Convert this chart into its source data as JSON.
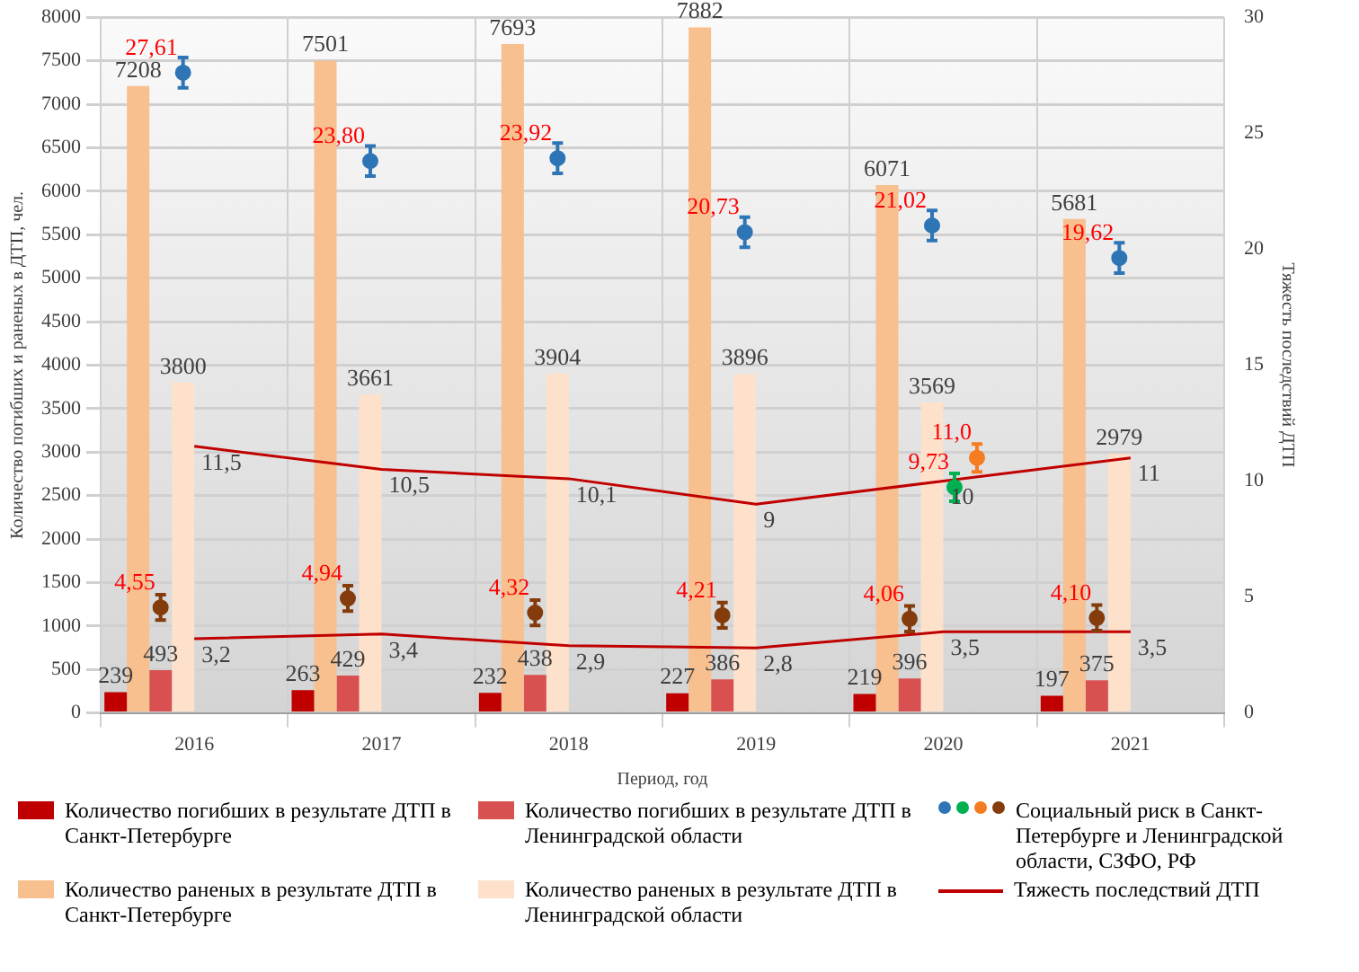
{
  "chart_data": {
    "type": "bar",
    "xlabel": "Период, год",
    "ylabel": "Количество погибших и раненых в ДТП, чел.",
    "y2label": "Тяжесть последствий ДТП",
    "categories": [
      "2016",
      "2017",
      "2018",
      "2019",
      "2020",
      "2021"
    ],
    "ylim": [
      0,
      8000
    ],
    "yticks": [
      0,
      500,
      1000,
      1500,
      2000,
      2500,
      3000,
      3500,
      4000,
      4500,
      5000,
      5500,
      6000,
      6500,
      7000,
      7500,
      8000
    ],
    "y2lim": [
      0,
      30
    ],
    "y2ticks": [
      0,
      5,
      10,
      15,
      20,
      25,
      30
    ],
    "grid": true,
    "legend": "bottom",
    "series": [
      {
        "name": "Количество погибших в результате ДТП в Санкт-Петербурге",
        "color": "#c00000",
        "values": [
          239,
          263,
          232,
          227,
          219,
          197
        ],
        "value_labels": [
          "239",
          "263",
          "232",
          "227",
          "219",
          "197"
        ]
      },
      {
        "name": "Количество раненых в результате ДТП в Санкт-Петербурге",
        "color": "#f8bf8f",
        "values": [
          7208,
          7501,
          7693,
          7882,
          6071,
          5681
        ],
        "value_labels": [
          "7208",
          "7501",
          "7693",
          "7882",
          "6071",
          "5681"
        ]
      },
      {
        "name": "Количество погибших в результате ДТП в Ленинградской области",
        "color": "#d85050",
        "values": [
          493,
          429,
          438,
          386,
          396,
          375
        ],
        "value_labels": [
          "493",
          "429",
          "438",
          "386",
          "396",
          "375"
        ]
      },
      {
        "name": "Количество раненых в результате ДТП в Ленинградской области",
        "color": "#fde1cb",
        "values": [
          3800,
          3661,
          3904,
          3896,
          3569,
          2979
        ],
        "value_labels": [
          "3800",
          "3661",
          "3904",
          "3896",
          "3569",
          "2979"
        ]
      },
      {
        "type": "scatter",
        "axis": "y2",
        "marker": "circle",
        "name": "Социальный риск в Санкт-Петербурге и Ленинградской области, СЗФО, РФ",
        "color": "#843c0c",
        "values": [
          4.55,
          4.94,
          4.32,
          4.21,
          4.06,
          4.1
        ],
        "errors": [
          0.55,
          0.55,
          0.55,
          0.55,
          0.55,
          0.55
        ],
        "value_labels": [
          "4,55",
          "4,94",
          "4,32",
          "4,21",
          "4,06",
          "4,10"
        ]
      },
      {
        "type": "scatter",
        "axis": "y2",
        "marker": "circle",
        "color": "#2e75b6",
        "values": [
          27.61,
          23.8,
          23.92,
          20.73,
          21.02,
          19.62
        ],
        "errors": [
          0.65,
          0.65,
          0.65,
          0.65,
          0.65,
          0.65
        ],
        "value_labels": [
          "27,61",
          "23,80",
          "23,92",
          "20,73",
          "21,02",
          "19,62"
        ]
      },
      {
        "type": "scatter",
        "axis": "y2",
        "marker": "circle",
        "color": "#00b050",
        "values": [
          null,
          null,
          null,
          null,
          9.73,
          null
        ],
        "errors": [
          null,
          null,
          null,
          null,
          0.6,
          null
        ],
        "value_labels": [
          null,
          null,
          null,
          null,
          "9,73",
          null
        ]
      },
      {
        "type": "scatter",
        "axis": "y2",
        "marker": "circle",
        "color": "#f57c20",
        "values": [
          null,
          null,
          null,
          null,
          11.0,
          null
        ],
        "errors": [
          null,
          null,
          null,
          null,
          0.6,
          null
        ],
        "value_labels": [
          null,
          null,
          null,
          null,
          "11,0",
          null
        ]
      },
      {
        "type": "line",
        "axis": "y2",
        "marker": "none",
        "name": "Тяжесть последствий ДТП",
        "color": "#c00000",
        "values": [
          11.5,
          10.5,
          10.1,
          9,
          10,
          11
        ],
        "value_labels": [
          "11,5",
          "10,5",
          "10,1",
          "9",
          "10",
          "11"
        ]
      },
      {
        "type": "line",
        "axis": "y2",
        "marker": "none",
        "color": "#c00000",
        "values": [
          3.2,
          3.4,
          2.9,
          2.8,
          3.5,
          3.5
        ],
        "value_labels": [
          "3,2",
          "3,4",
          "2,9",
          "2,8",
          "3,5",
          "3,5"
        ]
      }
    ]
  }
}
